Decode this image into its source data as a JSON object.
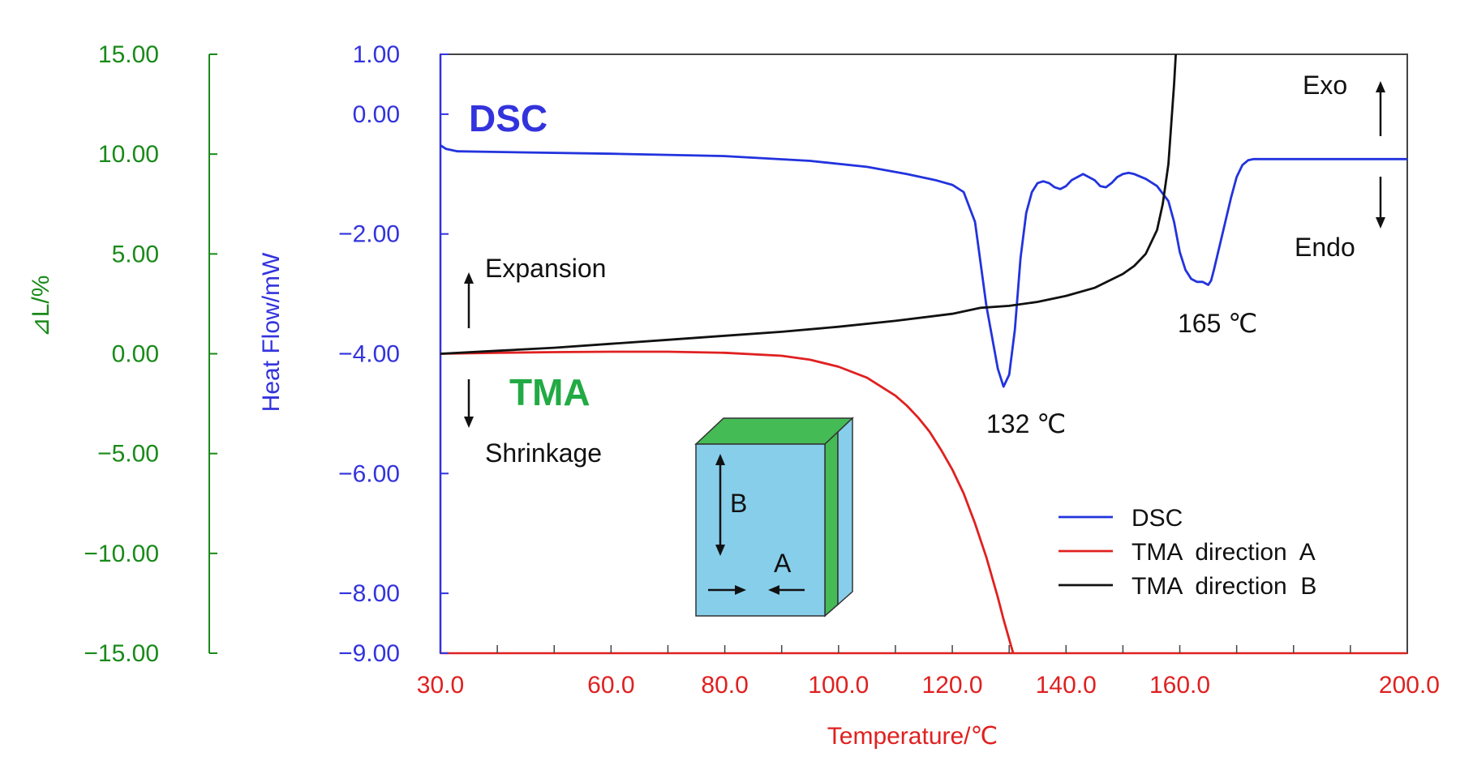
{
  "colors": {
    "dsc": "#2233dd",
    "tma_a": "#e02020",
    "tma_b": "#111111",
    "left_axis": "#1a8a1a",
    "dsc_axis": "#3333dd",
    "x_axis": "#e02020",
    "tma_label": "#22aa44",
    "block_face": "#87ceeb",
    "block_green": "#44bb55"
  },
  "chart_data": {
    "type": "line",
    "xlabel": "Temperature/℃",
    "xlim": [
      30,
      200
    ],
    "x_tick_labels": [
      "30.0",
      "60.0",
      "80.0",
      "100.0",
      "120.0",
      "140.0",
      "160.0",
      "200.0"
    ],
    "x_tick_values": [
      30,
      60,
      80,
      100,
      120,
      140,
      160,
      200
    ],
    "ylabel_left": "⊿L/%",
    "ylim_left": [
      -15,
      15
    ],
    "y_left_tick_labels": [
      "15.00",
      "10.00",
      "5.00",
      "0.00",
      "−5.00",
      "−10.00",
      "−15.00"
    ],
    "y_left_tick_values": [
      15,
      10,
      5,
      0,
      -5,
      -10,
      -15
    ],
    "ylabel_dsc": "Heat Flow/mW",
    "ylim_dsc": [
      -9,
      1
    ],
    "y_dsc_tick_labels": [
      "1.00",
      "0.00",
      "−2.00",
      "−4.00",
      "−6.00",
      "−8.00",
      "−9.00"
    ],
    "y_dsc_tick_values": [
      1,
      0,
      -2,
      -4,
      -6,
      -8,
      -9
    ],
    "series": [
      {
        "name": "DSC",
        "axis": "dsc",
        "x": [
          30,
          31,
          33,
          40,
          60,
          80,
          95,
          105,
          112,
          117,
          120,
          122,
          124,
          126,
          128,
          129,
          130,
          131,
          132,
          133,
          134,
          135,
          136,
          137,
          138,
          139,
          140,
          141,
          143,
          145,
          146,
          147,
          148,
          149,
          150,
          151,
          152,
          154,
          156,
          158,
          159,
          160,
          161,
          162,
          163,
          164,
          165,
          165.5,
          166,
          167,
          168,
          169,
          170,
          171,
          172,
          173,
          174,
          175,
          180,
          190,
          200
        ],
        "y": [
          -0.52,
          -0.58,
          -0.62,
          -0.63,
          -0.66,
          -0.7,
          -0.78,
          -0.88,
          -1.0,
          -1.1,
          -1.18,
          -1.3,
          -1.8,
          -3.2,
          -4.25,
          -4.55,
          -4.35,
          -3.6,
          -2.4,
          -1.65,
          -1.3,
          -1.15,
          -1.12,
          -1.15,
          -1.22,
          -1.25,
          -1.2,
          -1.1,
          -1.0,
          -1.1,
          -1.2,
          -1.22,
          -1.15,
          -1.05,
          -1.0,
          -0.98,
          -1.0,
          -1.08,
          -1.2,
          -1.45,
          -1.8,
          -2.3,
          -2.6,
          -2.75,
          -2.8,
          -2.8,
          -2.85,
          -2.78,
          -2.6,
          -2.2,
          -1.8,
          -1.4,
          -1.05,
          -0.85,
          -0.77,
          -0.75,
          -0.75,
          -0.75,
          -0.75,
          -0.75,
          -0.75
        ]
      },
      {
        "name": "TMA direction A",
        "axis": "left",
        "x": [
          30,
          40,
          50,
          60,
          70,
          80,
          90,
          95,
          100,
          105,
          110,
          112,
          114,
          116,
          118,
          120,
          122,
          124,
          126,
          128,
          129,
          130,
          131,
          132
        ],
        "y": [
          0,
          0.05,
          0.08,
          0.1,
          0.1,
          0.05,
          -0.1,
          -0.3,
          -0.65,
          -1.2,
          -2.1,
          -2.6,
          -3.2,
          -3.9,
          -4.8,
          -5.8,
          -7.0,
          -8.5,
          -10.2,
          -12.2,
          -13.3,
          -14.3,
          -15.3,
          -16.5
        ]
      },
      {
        "name": "TMA direction B",
        "axis": "left",
        "x": [
          30,
          40,
          50,
          60,
          70,
          80,
          90,
          100,
          110,
          120,
          125,
          130,
          135,
          140,
          145,
          150,
          152,
          154,
          156,
          157,
          158,
          158.5,
          159,
          159.3,
          159.6
        ],
        "y": [
          0,
          0.15,
          0.3,
          0.5,
          0.7,
          0.9,
          1.1,
          1.35,
          1.65,
          2.0,
          2.3,
          2.4,
          2.6,
          2.9,
          3.3,
          4.0,
          4.4,
          5.0,
          6.2,
          7.5,
          9.5,
          11.5,
          13.5,
          15.0,
          16.5
        ]
      }
    ],
    "legend": {
      "position": "bottom-right",
      "entries": [
        "DSC",
        "TMA  direction  A",
        "TMA  direction  B"
      ]
    },
    "annotations": {
      "dsc": "DSC",
      "tma": "TMA",
      "expansion": "Expansion",
      "shrinkage": "Shrinkage",
      "exo": "Exo",
      "endo": "Endo",
      "peak_132": "132 ℃",
      "peak_165": "165 ℃",
      "block_b": "B",
      "block_a": "A"
    }
  }
}
